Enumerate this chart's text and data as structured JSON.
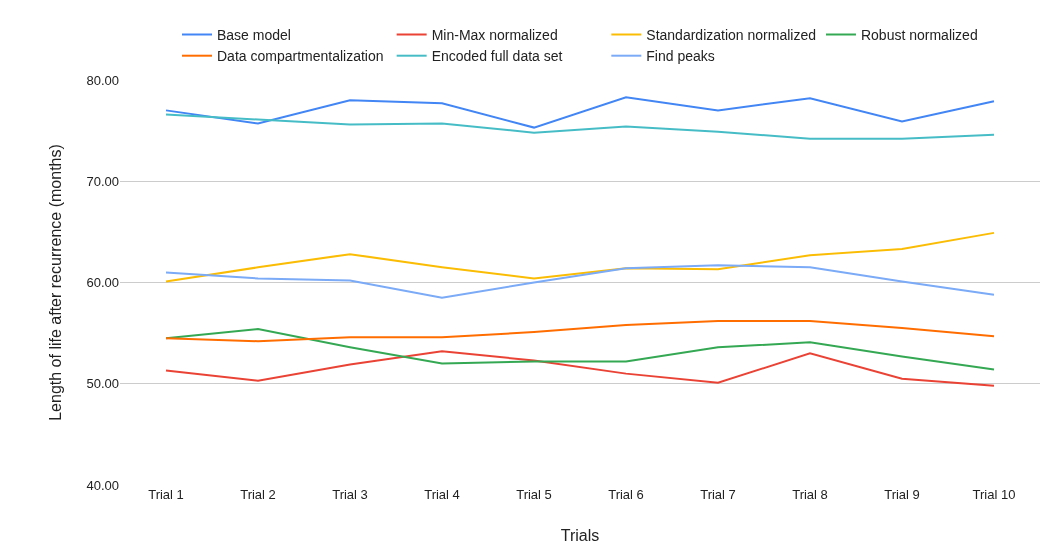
{
  "chart_data": {
    "type": "line",
    "xlabel": "Trials",
    "ylabel": "Length of life after recurrence (months)",
    "categories": [
      "Trial 1",
      "Trial 2",
      "Trial 3",
      "Trial 4",
      "Trial 5",
      "Trial 6",
      "Trial 7",
      "Trial 8",
      "Trial 9",
      "Trial 10"
    ],
    "series": [
      {
        "name": "Base model",
        "color": "#4285f4",
        "values": [
          77.0,
          75.7,
          78.0,
          77.7,
          75.3,
          78.3,
          77.0,
          78.2,
          75.9,
          77.9
        ]
      },
      {
        "name": "Min-Max normalized",
        "color": "#ea4335",
        "values": [
          51.3,
          50.3,
          51.9,
          53.2,
          52.3,
          51.0,
          50.1,
          53.0,
          50.5,
          49.8
        ]
      },
      {
        "name": "Standardization normalized",
        "color": "#fbbc04",
        "values": [
          60.1,
          61.5,
          62.8,
          61.5,
          60.4,
          61.4,
          61.3,
          62.7,
          63.3,
          64.9
        ]
      },
      {
        "name": "Robust normalized",
        "color": "#34a853",
        "values": [
          54.5,
          55.4,
          53.6,
          52.0,
          52.2,
          52.2,
          53.6,
          54.1,
          52.7,
          51.4
        ]
      },
      {
        "name": "Data compartmentalization",
        "color": "#ff6d01",
        "values": [
          54.5,
          54.2,
          54.6,
          54.6,
          55.1,
          55.8,
          56.2,
          56.2,
          55.5,
          54.7
        ]
      },
      {
        "name": "Encoded full data set",
        "color": "#46bdc6",
        "values": [
          76.6,
          76.1,
          75.6,
          75.7,
          74.8,
          75.4,
          74.9,
          74.2,
          74.2,
          74.6
        ]
      },
      {
        "name": "Find peaks",
        "color": "#7baaf7",
        "values": [
          61.0,
          60.4,
          60.2,
          58.5,
          60.0,
          61.4,
          61.7,
          61.5,
          60.1,
          58.8
        ]
      }
    ],
    "ylim": [
      40,
      80
    ],
    "yticks": [
      {
        "value": 40,
        "label": "40.00"
      },
      {
        "value": 50,
        "label": "50.00"
      },
      {
        "value": 60,
        "label": "60.00"
      },
      {
        "value": 70,
        "label": "70.00"
      },
      {
        "value": 80,
        "label": "80.00"
      }
    ],
    "grid": "y",
    "legend": "top",
    "marker": "none",
    "line_style": "solid"
  }
}
